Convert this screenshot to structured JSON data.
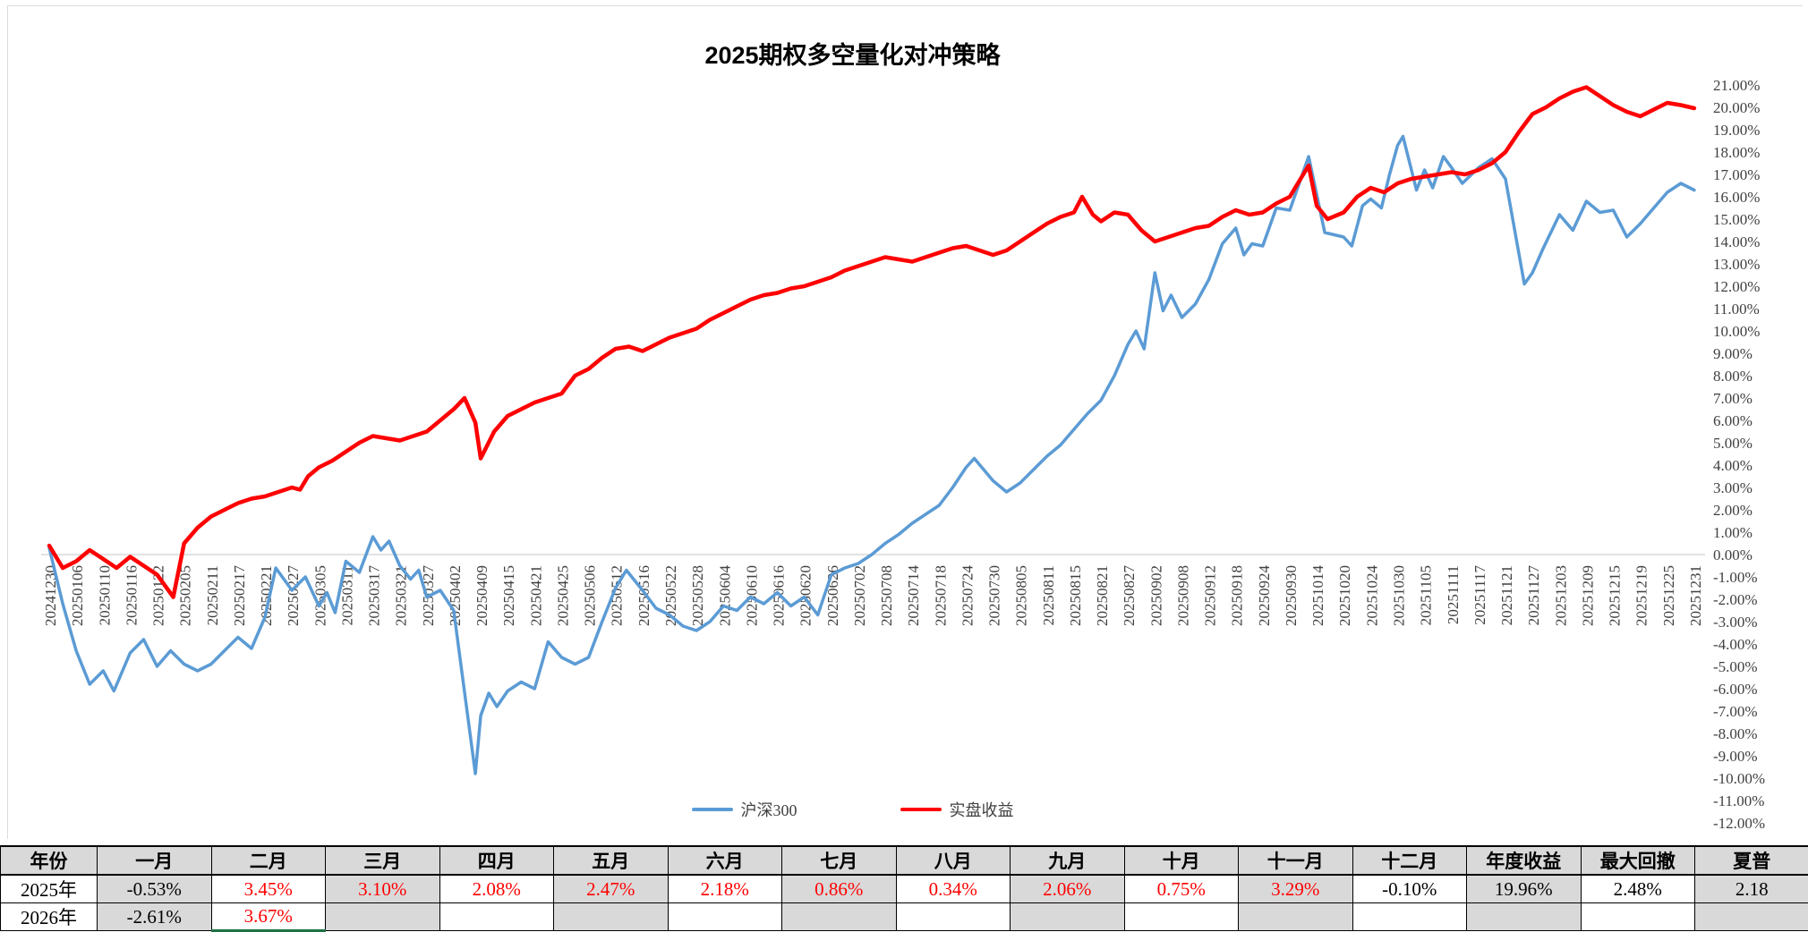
{
  "chart_data": {
    "type": "line",
    "title": "2025期权多空量化对冲策略",
    "legend_position": "bottom-center",
    "grid": "zero-line-only",
    "x_labels": [
      "20241230",
      "20250106",
      "20250110",
      "20250116",
      "20250122",
      "20250205",
      "20250211",
      "20250217",
      "20250221",
      "20250227",
      "20250305",
      "20250311",
      "20250317",
      "20250321",
      "20250327",
      "20250402",
      "20250409",
      "20250415",
      "20250421",
      "20250425",
      "20250506",
      "20250512",
      "20250516",
      "20250522",
      "20250528",
      "20250604",
      "20250610",
      "20250616",
      "20250620",
      "20250626",
      "20250702",
      "20250708",
      "20250714",
      "20250718",
      "20250724",
      "20250730",
      "20250805",
      "20250811",
      "20250815",
      "20250821",
      "20250827",
      "20250902",
      "20250908",
      "20250912",
      "20250918",
      "20250924",
      "20250930",
      "20251014",
      "20251020",
      "20251024",
      "20251030",
      "20251105",
      "20251111",
      "20251117",
      "20251121",
      "20251127",
      "20251203",
      "20251209",
      "20251215",
      "20251219",
      "20251225",
      "20251231"
    ],
    "y_axis": {
      "max": 21,
      "min": -12,
      "step": 1,
      "format": "0.00%",
      "tick_labels": [
        "21.00%",
        "20.00%",
        "19.00%",
        "18.00%",
        "17.00%",
        "16.00%",
        "15.00%",
        "14.00%",
        "13.00%",
        "12.00%",
        "11.00%",
        "10.00%",
        "9.00%",
        "8.00%",
        "7.00%",
        "6.00%",
        "5.00%",
        "4.00%",
        "3.00%",
        "2.00%",
        "1.00%",
        "0.00%",
        "-1.00%",
        "-2.00%",
        "-3.00%",
        "-4.00%",
        "-5.00%",
        "-6.00%",
        "-7.00%",
        "-8.00%",
        "-9.00%",
        "-10.00%",
        "-11.00%",
        "-12.00%"
      ]
    },
    "series": [
      {
        "name": "沪深300",
        "color": "#5B9BD5",
        "width": 3.5,
        "points": [
          [
            0,
            0.3
          ],
          [
            0.5,
            -2.2
          ],
          [
            1,
            -4.3
          ],
          [
            1.5,
            -5.8
          ],
          [
            2,
            -5.2
          ],
          [
            2.4,
            -6.1
          ],
          [
            3,
            -4.4
          ],
          [
            3.5,
            -3.8
          ],
          [
            4,
            -5.0
          ],
          [
            4.5,
            -4.3
          ],
          [
            5,
            -4.9
          ],
          [
            5.5,
            -5.2
          ],
          [
            6,
            -4.9
          ],
          [
            6.5,
            -4.3
          ],
          [
            7,
            -3.7
          ],
          [
            7.5,
            -4.2
          ],
          [
            8,
            -2.8
          ],
          [
            8.4,
            -0.6
          ],
          [
            9,
            -1.6
          ],
          [
            9.5,
            -1.0
          ],
          [
            10,
            -2.3
          ],
          [
            10.3,
            -1.7
          ],
          [
            10.6,
            -2.6
          ],
          [
            11,
            -0.3
          ],
          [
            11.5,
            -0.8
          ],
          [
            12,
            0.8
          ],
          [
            12.3,
            0.2
          ],
          [
            12.6,
            0.6
          ],
          [
            13,
            -0.5
          ],
          [
            13.4,
            -1.1
          ],
          [
            13.7,
            -0.7
          ],
          [
            14,
            -1.9
          ],
          [
            14.5,
            -1.6
          ],
          [
            15,
            -2.5
          ],
          [
            15.8,
            -9.8
          ],
          [
            16,
            -7.2
          ],
          [
            16.3,
            -6.2
          ],
          [
            16.6,
            -6.8
          ],
          [
            17,
            -6.1
          ],
          [
            17.5,
            -5.7
          ],
          [
            18,
            -6.0
          ],
          [
            18.5,
            -3.9
          ],
          [
            19,
            -4.6
          ],
          [
            19.5,
            -4.9
          ],
          [
            20,
            -4.6
          ],
          [
            20.5,
            -3.0
          ],
          [
            21,
            -1.5
          ],
          [
            21.4,
            -0.7
          ],
          [
            22,
            -1.6
          ],
          [
            22.5,
            -2.4
          ],
          [
            23,
            -2.7
          ],
          [
            23.5,
            -3.2
          ],
          [
            24,
            -3.4
          ],
          [
            24.5,
            -3.0
          ],
          [
            25,
            -2.3
          ],
          [
            25.5,
            -2.5
          ],
          [
            26,
            -1.9
          ],
          [
            26.5,
            -2.2
          ],
          [
            27,
            -1.7
          ],
          [
            27.5,
            -2.3
          ],
          [
            28,
            -1.9
          ],
          [
            28.5,
            -2.7
          ],
          [
            29,
            -0.9
          ],
          [
            29.5,
            -0.6
          ],
          [
            30,
            -0.4
          ],
          [
            30.5,
            0.0
          ],
          [
            31,
            0.5
          ],
          [
            31.5,
            0.9
          ],
          [
            32,
            1.4
          ],
          [
            32.5,
            1.8
          ],
          [
            33,
            2.2
          ],
          [
            33.5,
            3.0
          ],
          [
            34,
            3.9
          ],
          [
            34.3,
            4.3
          ],
          [
            35,
            3.3
          ],
          [
            35.5,
            2.8
          ],
          [
            36,
            3.2
          ],
          [
            36.5,
            3.8
          ],
          [
            37,
            4.4
          ],
          [
            37.5,
            4.9
          ],
          [
            38,
            5.6
          ],
          [
            38.5,
            6.3
          ],
          [
            39,
            6.9
          ],
          [
            39.5,
            8.0
          ],
          [
            40,
            9.4
          ],
          [
            40.3,
            10.0
          ],
          [
            40.6,
            9.2
          ],
          [
            41,
            12.6
          ],
          [
            41.3,
            10.9
          ],
          [
            41.6,
            11.6
          ],
          [
            42,
            10.6
          ],
          [
            42.5,
            11.2
          ],
          [
            43,
            12.3
          ],
          [
            43.5,
            13.9
          ],
          [
            44,
            14.6
          ],
          [
            44.3,
            13.4
          ],
          [
            44.6,
            13.9
          ],
          [
            45,
            13.8
          ],
          [
            45.5,
            15.5
          ],
          [
            46,
            15.4
          ],
          [
            46.7,
            17.8
          ],
          [
            47,
            16.1
          ],
          [
            47.3,
            14.4
          ],
          [
            48,
            14.2
          ],
          [
            48.3,
            13.8
          ],
          [
            48.7,
            15.6
          ],
          [
            49,
            15.9
          ],
          [
            49.4,
            15.5
          ],
          [
            49.7,
            17.0
          ],
          [
            50,
            18.3
          ],
          [
            50.2,
            18.7
          ],
          [
            50.7,
            16.3
          ],
          [
            51,
            17.2
          ],
          [
            51.3,
            16.4
          ],
          [
            51.7,
            17.8
          ],
          [
            52,
            17.3
          ],
          [
            52.4,
            16.6
          ],
          [
            53,
            17.3
          ],
          [
            53.5,
            17.7
          ],
          [
            54,
            16.8
          ],
          [
            54.7,
            12.1
          ],
          [
            55,
            12.6
          ],
          [
            55.4,
            13.7
          ],
          [
            56,
            15.2
          ],
          [
            56.5,
            14.5
          ],
          [
            57,
            15.8
          ],
          [
            57.5,
            15.3
          ],
          [
            58,
            15.4
          ],
          [
            58.5,
            14.2
          ],
          [
            59,
            14.8
          ],
          [
            59.5,
            15.5
          ],
          [
            60,
            16.2
          ],
          [
            60.5,
            16.6
          ],
          [
            61,
            16.3
          ]
        ]
      },
      {
        "name": "实盘收益",
        "color": "#FF0000",
        "width": 4.5,
        "points": [
          [
            0,
            0.4
          ],
          [
            0.5,
            -0.6
          ],
          [
            1,
            -0.3
          ],
          [
            1.5,
            0.2
          ],
          [
            2,
            -0.2
          ],
          [
            2.5,
            -0.6
          ],
          [
            3,
            -0.1
          ],
          [
            3.5,
            -0.5
          ],
          [
            4,
            -0.9
          ],
          [
            4.6,
            -1.9
          ],
          [
            5,
            0.5
          ],
          [
            5.5,
            1.2
          ],
          [
            6,
            1.7
          ],
          [
            6.5,
            2.0
          ],
          [
            7,
            2.3
          ],
          [
            7.5,
            2.5
          ],
          [
            8,
            2.6
          ],
          [
            8.5,
            2.8
          ],
          [
            9,
            3.0
          ],
          [
            9.3,
            2.9
          ],
          [
            9.6,
            3.5
          ],
          [
            10,
            3.9
          ],
          [
            10.5,
            4.2
          ],
          [
            11,
            4.6
          ],
          [
            11.5,
            5.0
          ],
          [
            12,
            5.3
          ],
          [
            12.5,
            5.2
          ],
          [
            13,
            5.1
          ],
          [
            13.5,
            5.3
          ],
          [
            14,
            5.5
          ],
          [
            14.5,
            6.0
          ],
          [
            15,
            6.5
          ],
          [
            15.4,
            7.0
          ],
          [
            15.8,
            5.9
          ],
          [
            16,
            4.3
          ],
          [
            16.5,
            5.5
          ],
          [
            17,
            6.2
          ],
          [
            17.5,
            6.5
          ],
          [
            18,
            6.8
          ],
          [
            18.5,
            7.0
          ],
          [
            19,
            7.2
          ],
          [
            19.5,
            8.0
          ],
          [
            20,
            8.3
          ],
          [
            20.5,
            8.8
          ],
          [
            21,
            9.2
          ],
          [
            21.5,
            9.3
          ],
          [
            22,
            9.1
          ],
          [
            22.5,
            9.4
          ],
          [
            23,
            9.7
          ],
          [
            23.5,
            9.9
          ],
          [
            24,
            10.1
          ],
          [
            24.5,
            10.5
          ],
          [
            25,
            10.8
          ],
          [
            25.5,
            11.1
          ],
          [
            26,
            11.4
          ],
          [
            26.5,
            11.6
          ],
          [
            27,
            11.7
          ],
          [
            27.5,
            11.9
          ],
          [
            28,
            12.0
          ],
          [
            28.5,
            12.2
          ],
          [
            29,
            12.4
          ],
          [
            29.5,
            12.7
          ],
          [
            30,
            12.9
          ],
          [
            30.5,
            13.1
          ],
          [
            31,
            13.3
          ],
          [
            31.5,
            13.2
          ],
          [
            32,
            13.1
          ],
          [
            32.5,
            13.3
          ],
          [
            33,
            13.5
          ],
          [
            33.5,
            13.7
          ],
          [
            34,
            13.8
          ],
          [
            34.5,
            13.6
          ],
          [
            35,
            13.4
          ],
          [
            35.5,
            13.6
          ],
          [
            36,
            14.0
          ],
          [
            36.5,
            14.4
          ],
          [
            37,
            14.8
          ],
          [
            37.5,
            15.1
          ],
          [
            38,
            15.3
          ],
          [
            38.3,
            16.0
          ],
          [
            38.7,
            15.2
          ],
          [
            39,
            14.9
          ],
          [
            39.5,
            15.3
          ],
          [
            40,
            15.2
          ],
          [
            40.5,
            14.5
          ],
          [
            41,
            14.0
          ],
          [
            41.5,
            14.2
          ],
          [
            42,
            14.4
          ],
          [
            42.5,
            14.6
          ],
          [
            43,
            14.7
          ],
          [
            43.5,
            15.1
          ],
          [
            44,
            15.4
          ],
          [
            44.5,
            15.2
          ],
          [
            45,
            15.3
          ],
          [
            45.5,
            15.7
          ],
          [
            46,
            16.0
          ],
          [
            46.7,
            17.4
          ],
          [
            47,
            15.6
          ],
          [
            47.4,
            15.0
          ],
          [
            48,
            15.3
          ],
          [
            48.5,
            16.0
          ],
          [
            49,
            16.4
          ],
          [
            49.5,
            16.2
          ],
          [
            50,
            16.6
          ],
          [
            50.5,
            16.8
          ],
          [
            51,
            16.9
          ],
          [
            51.5,
            17.0
          ],
          [
            52,
            17.1
          ],
          [
            52.5,
            17.0
          ],
          [
            53,
            17.2
          ],
          [
            53.5,
            17.5
          ],
          [
            54,
            18.0
          ],
          [
            54.5,
            18.9
          ],
          [
            55,
            19.7
          ],
          [
            55.5,
            20.0
          ],
          [
            56,
            20.4
          ],
          [
            56.5,
            20.7
          ],
          [
            57,
            20.9
          ],
          [
            57.5,
            20.5
          ],
          [
            58,
            20.1
          ],
          [
            58.5,
            19.8
          ],
          [
            59,
            19.6
          ],
          [
            59.5,
            19.9
          ],
          [
            60,
            20.2
          ],
          [
            60.5,
            20.1
          ],
          [
            61,
            19.96
          ]
        ]
      }
    ]
  },
  "table": {
    "headers": [
      "年份",
      "一月",
      "二月",
      "三月",
      "四月",
      "五月",
      "六月",
      "七月",
      "八月",
      "九月",
      "十月",
      "十一月",
      "十二月",
      "年度收益",
      "最大回撤",
      "夏普"
    ],
    "rows": [
      {
        "cells": [
          "2025年",
          "-0.53%",
          "3.45%",
          "3.10%",
          "2.08%",
          "2.47%",
          "2.18%",
          "0.86%",
          "0.34%",
          "2.06%",
          "0.75%",
          "3.29%",
          "-0.10%",
          "19.96%",
          "2.48%",
          "2.18"
        ],
        "red": [
          false,
          false,
          true,
          true,
          true,
          true,
          true,
          true,
          true,
          true,
          true,
          true,
          false,
          false,
          false,
          false
        ]
      },
      {
        "cells": [
          "2026年",
          "-2.61%",
          "3.67%",
          "",
          "",
          "",
          "",
          "",
          "",
          "",
          "",
          "",
          "",
          "",
          "",
          ""
        ],
        "red": [
          false,
          false,
          true,
          false,
          false,
          false,
          false,
          false,
          false,
          false,
          false,
          false,
          false,
          false,
          false,
          false
        ]
      }
    ],
    "selected_cell": {
      "row": 1,
      "col": 2
    },
    "colors": {
      "header_bg": "#D9D9D9",
      "alt_col_bg": "#D9D9D9",
      "red_text": "#FF0000",
      "selection_green": "#1E7145",
      "border": "#000000"
    }
  }
}
